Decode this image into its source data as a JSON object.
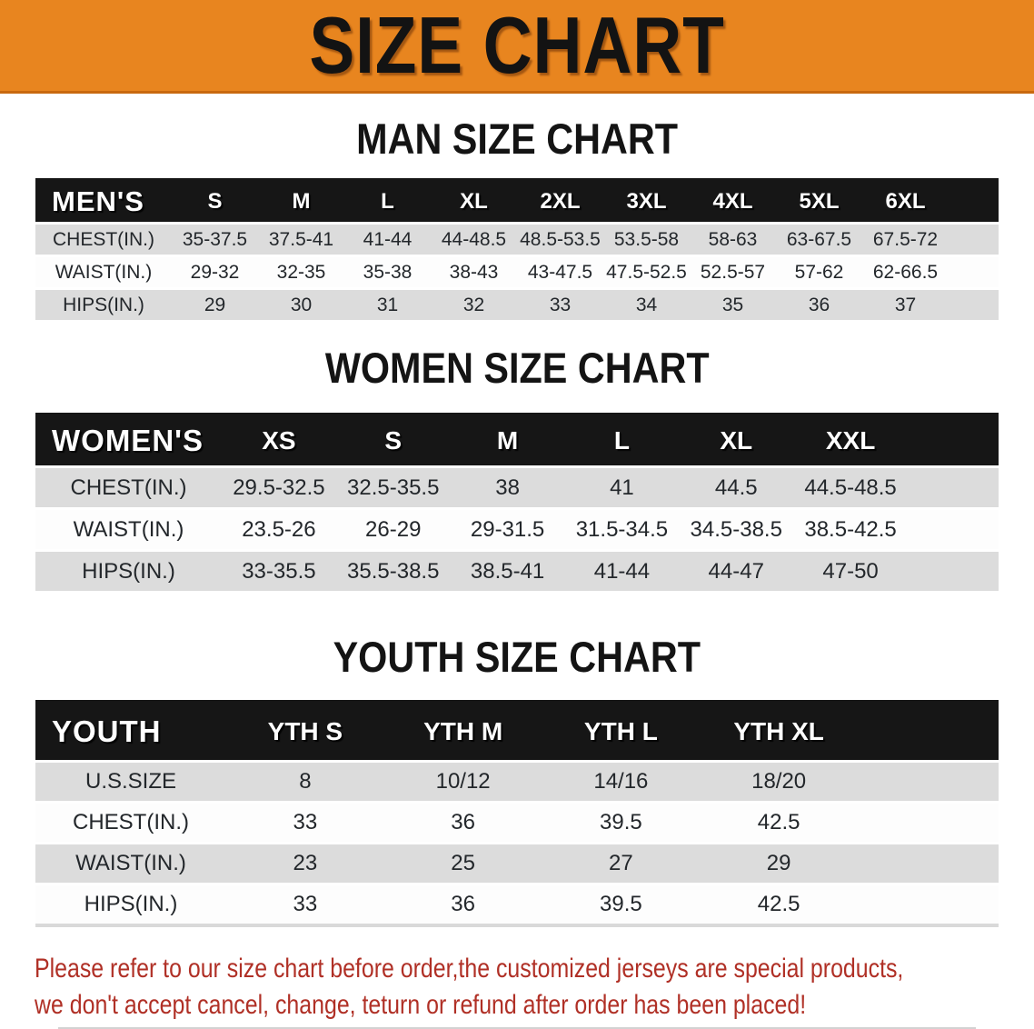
{
  "banner": {
    "title": "SIZE CHART"
  },
  "colors": {
    "banner_bg": "#E8851F",
    "banner_edge": "#C8690F",
    "header_bar": "#161616",
    "stripe_gray": "#DCDCDC",
    "note_text": "#B03026"
  },
  "men": {
    "title": "MAN SIZE CHART",
    "corner": "MEN'S",
    "cols": [
      "S",
      "M",
      "L",
      "XL",
      "2XL",
      "3XL",
      "4XL",
      "5XL",
      "6XL"
    ],
    "chest": {
      "label": "CHEST(IN.)",
      "v": [
        "35-37.5",
        "37.5-41",
        "41-44",
        "44-48.5",
        "48.5-53.5",
        "53.5-58",
        "58-63",
        "63-67.5",
        "67.5-72"
      ]
    },
    "waist": {
      "label": "WAIST(IN.)",
      "v": [
        "29-32",
        "32-35",
        "35-38",
        "38-43",
        "43-47.5",
        "47.5-52.5",
        "52.5-57",
        "57-62",
        "62-66.5"
      ]
    },
    "hips": {
      "label": "HIPS(IN.)",
      "v": [
        "29",
        "30",
        "31",
        "32",
        "33",
        "34",
        "35",
        "36",
        "37"
      ]
    }
  },
  "women": {
    "title": "WOMEN SIZE CHART",
    "corner": "WOMEN'S",
    "cols": [
      "XS",
      "S",
      "M",
      "L",
      "XL",
      "XXL"
    ],
    "chest": {
      "label": "CHEST(IN.)",
      "v": [
        "29.5-32.5",
        "32.5-35.5",
        "38",
        "41",
        "44.5",
        "44.5-48.5"
      ]
    },
    "waist": {
      "label": "WAIST(IN.)",
      "v": [
        "23.5-26",
        "26-29",
        "29-31.5",
        "31.5-34.5",
        "34.5-38.5",
        "38.5-42.5"
      ]
    },
    "hips": {
      "label": "HIPS(IN.)",
      "v": [
        "33-35.5",
        "35.5-38.5",
        "38.5-41",
        "41-44",
        "44-47",
        "47-50"
      ]
    }
  },
  "youth": {
    "title": "YOUTH SIZE CHART",
    "corner": "YOUTH",
    "cols": [
      "YTH S",
      "YTH M",
      "YTH L",
      "YTH XL"
    ],
    "ussize": {
      "label": "U.S.SIZE",
      "v": [
        "8",
        "10/12",
        "14/16",
        "18/20"
      ]
    },
    "chest": {
      "label": "CHEST(IN.)",
      "v": [
        "33",
        "36",
        "39.5",
        "42.5"
      ]
    },
    "waist": {
      "label": "WAIST(IN.)",
      "v": [
        "23",
        "25",
        "27",
        "29"
      ]
    },
    "hips": {
      "label": "HIPS(IN.)",
      "v": [
        "33",
        "36",
        "39.5",
        "42.5"
      ]
    }
  },
  "note": {
    "line1": "Please refer to our size chart before order,the customized jerseys are special products,",
    "line2": "we don't accept cancel, change, teturn or refund after order has been placed!"
  }
}
